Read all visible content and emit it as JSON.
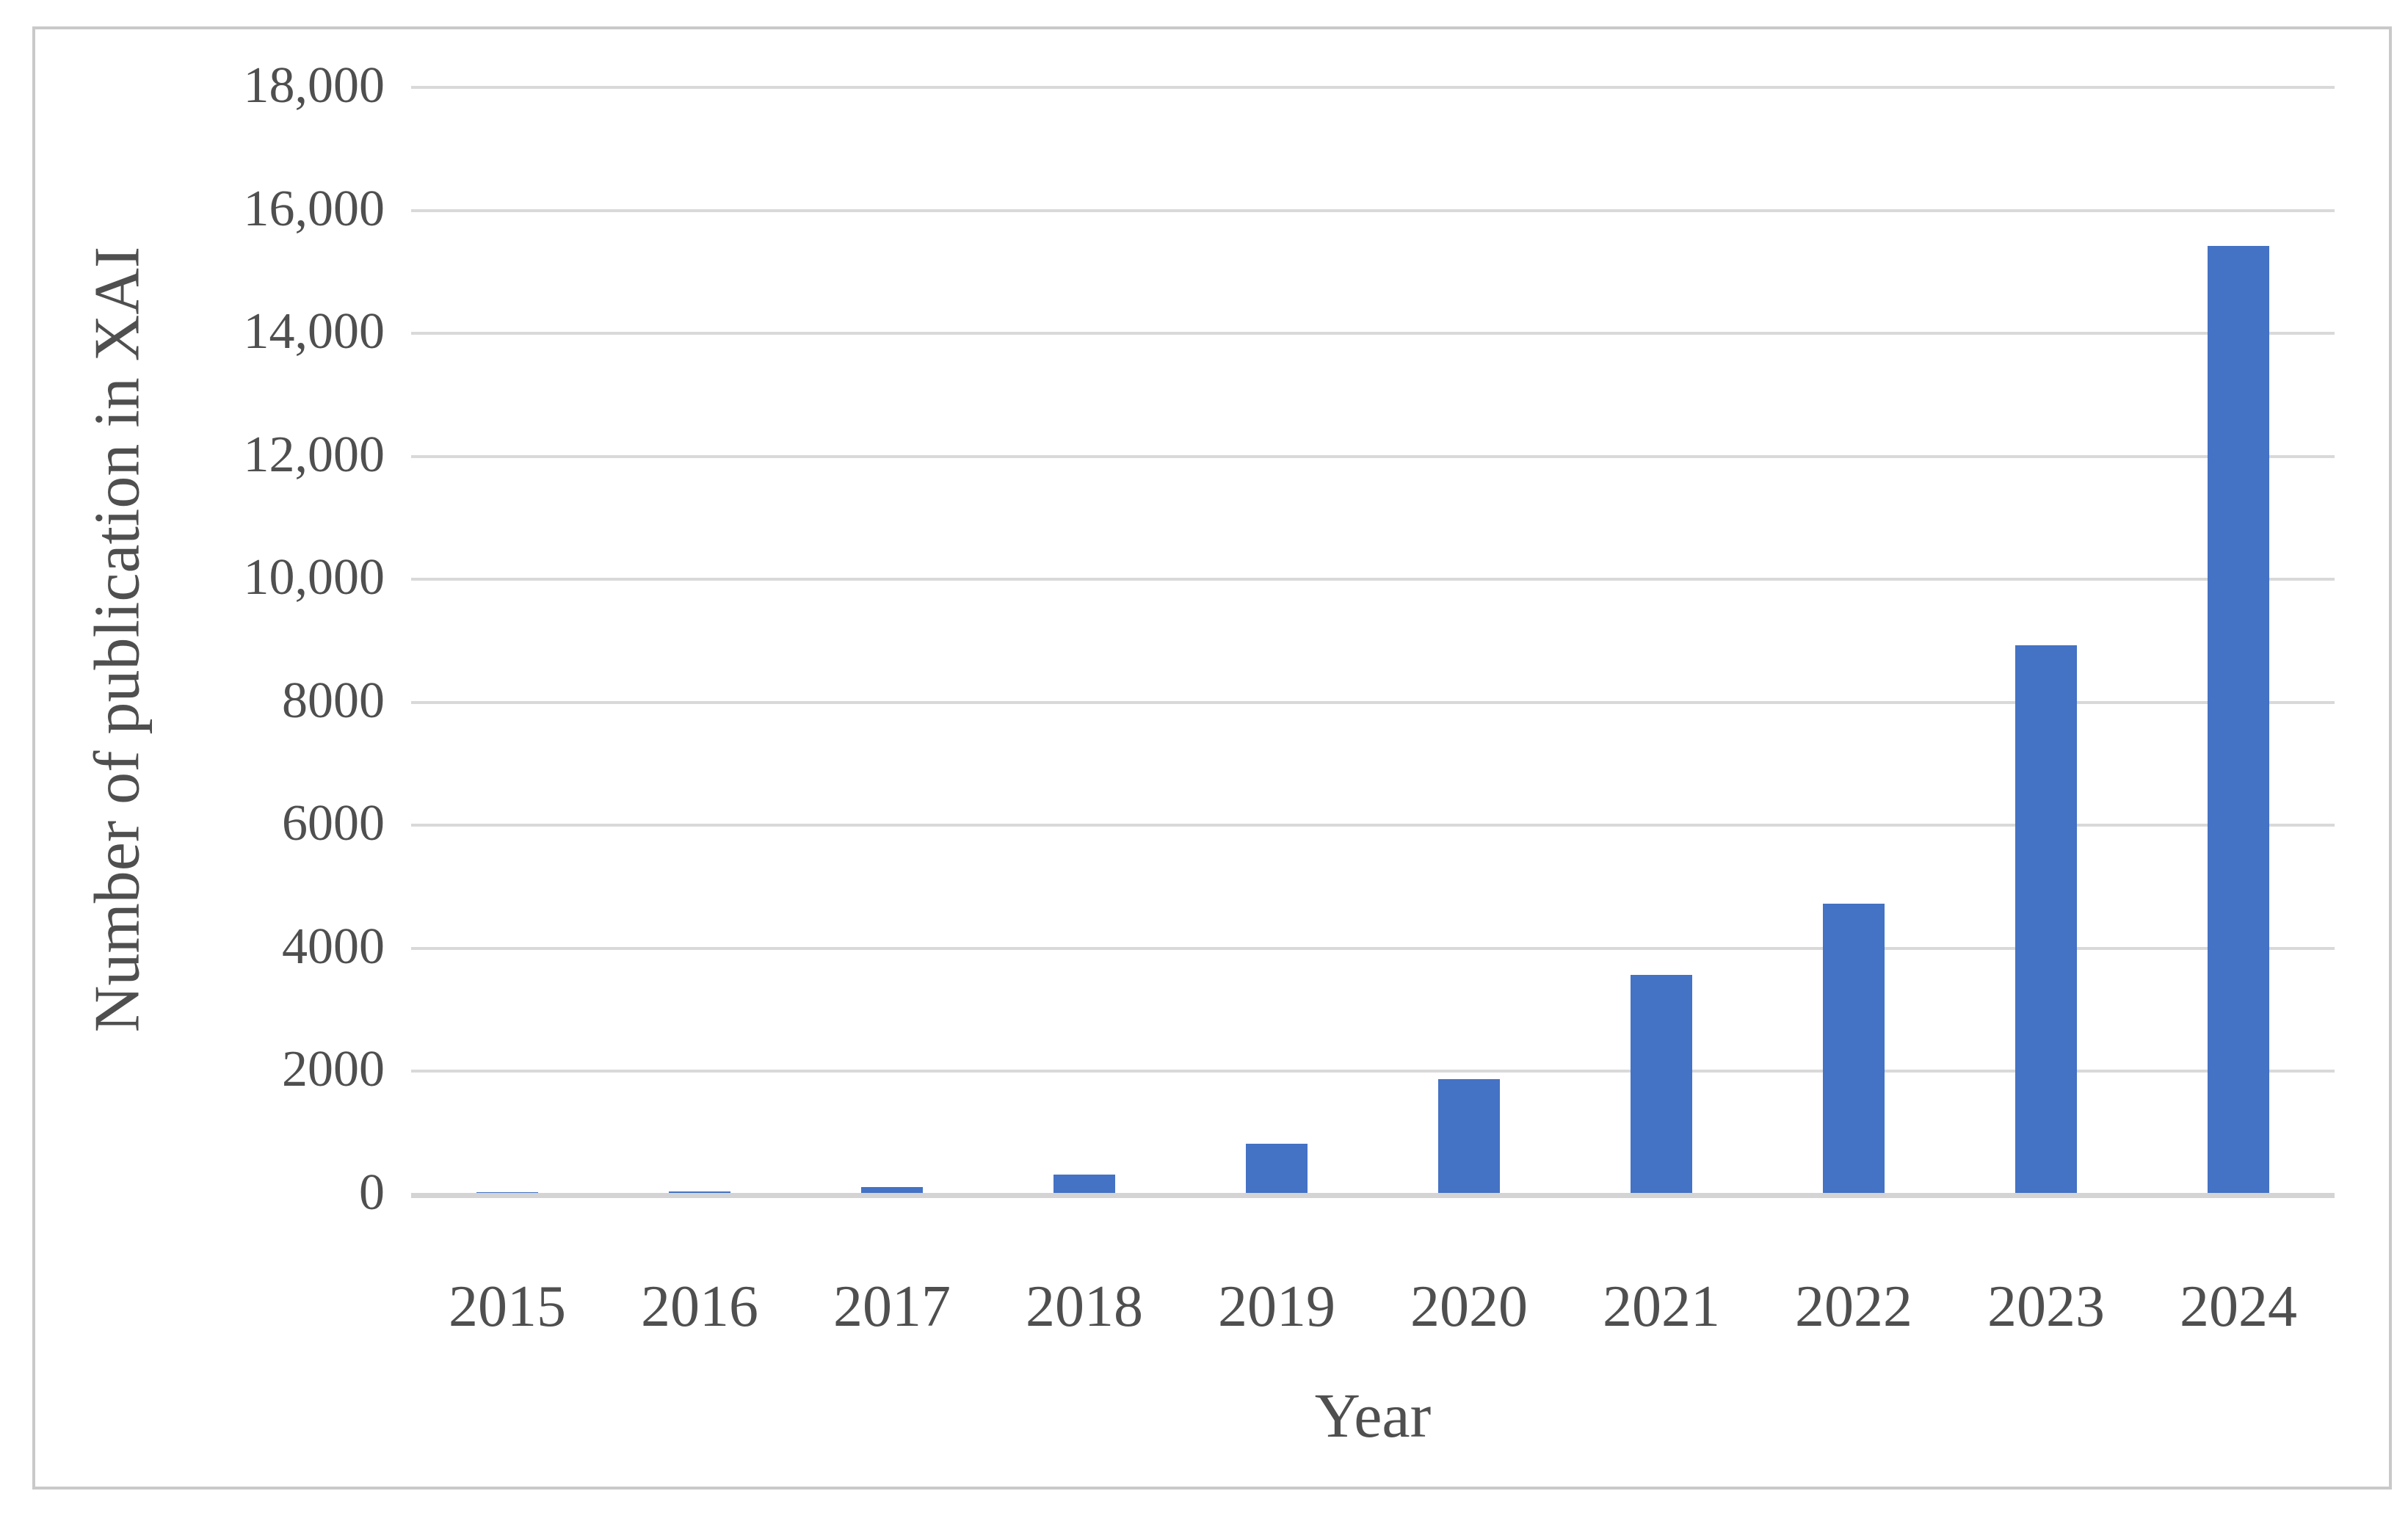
{
  "chart_data": {
    "type": "bar",
    "title": "",
    "xlabel": "Year",
    "ylabel": "Number of publication in XAI",
    "categories": [
      "2015",
      "2016",
      "2017",
      "2018",
      "2019",
      "2020",
      "2021",
      "2022",
      "2023",
      "2024"
    ],
    "values": [
      10,
      20,
      100,
      300,
      800,
      1850,
      3550,
      4700,
      8900,
      15400
    ],
    "ylim": [
      0,
      18000
    ],
    "ytick_step": 2000,
    "y_tick_labels": [
      "0",
      "2000",
      "4000",
      "6000",
      "8000",
      "10,000",
      "12,000",
      "14,000",
      "16,000",
      "18,000"
    ],
    "grid": "horizontal",
    "legend": "none",
    "colors": {
      "bar": "#4472C4",
      "gridline": "#D9D9D9",
      "axis_line": "#D4D4D4",
      "text": "#4F4F4F",
      "border": "#C9C9C9",
      "background": "#FFFFFF"
    }
  }
}
